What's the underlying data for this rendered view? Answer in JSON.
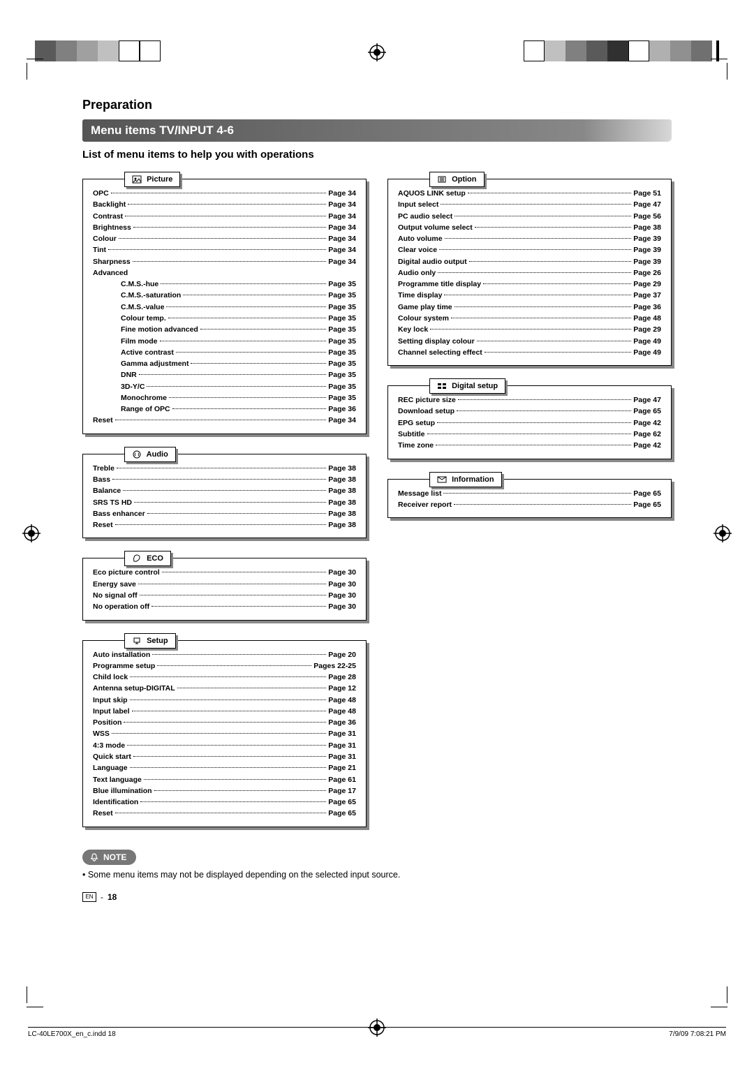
{
  "header": {
    "section_title": "Preparation",
    "bar_title": "Menu items TV/INPUT 4-6",
    "subtitle": "List of menu items to help you with operations"
  },
  "categories": {
    "picture": {
      "label": "Picture",
      "icon": "picture-icon",
      "items": [
        {
          "label": "OPC",
          "page": "Page 34"
        },
        {
          "label": "Backlight",
          "page": "Page 34"
        },
        {
          "label": "Contrast",
          "page": "Page 34"
        },
        {
          "label": "Brightness",
          "page": "Page 34"
        },
        {
          "label": "Colour",
          "page": "Page 34"
        },
        {
          "label": "Tint",
          "page": "Page 34"
        },
        {
          "label": "Sharpness",
          "page": "Page 34"
        }
      ],
      "advanced_label": "Advanced",
      "advanced_items": [
        {
          "label": "C.M.S.-hue",
          "page": "Page 35"
        },
        {
          "label": "C.M.S.-saturation",
          "page": "Page 35"
        },
        {
          "label": "C.M.S.-value",
          "page": "Page 35"
        },
        {
          "label": "Colour temp.",
          "page": "Page 35"
        },
        {
          "label": "Fine motion advanced",
          "page": "Page 35"
        },
        {
          "label": "Film mode",
          "page": "Page 35"
        },
        {
          "label": "Active contrast",
          "page": "Page 35"
        },
        {
          "label": "Gamma adjustment",
          "page": "Page 35"
        },
        {
          "label": "DNR",
          "page": "Page 35"
        },
        {
          "label": "3D-Y/C",
          "page": "Page 35"
        },
        {
          "label": "Monochrome",
          "page": "Page 35"
        },
        {
          "label": "Range of OPC",
          "page": "Page 36"
        }
      ],
      "footer_items": [
        {
          "label": "Reset",
          "page": "Page 34"
        }
      ]
    },
    "audio": {
      "label": "Audio",
      "icon": "audio-icon",
      "items": [
        {
          "label": "Treble",
          "page": "Page 38"
        },
        {
          "label": "Bass",
          "page": "Page 38"
        },
        {
          "label": "Balance",
          "page": "Page 38"
        },
        {
          "label": "SRS TS HD",
          "page": "Page 38"
        },
        {
          "label": "Bass enhancer",
          "page": "Page 38"
        },
        {
          "label": "Reset",
          "page": "Page 38"
        }
      ]
    },
    "eco": {
      "label": "ECO",
      "icon": "eco-icon",
      "items": [
        {
          "label": "Eco picture control",
          "page": "Page 30"
        },
        {
          "label": "Energy save",
          "page": "Page 30"
        },
        {
          "label": "No signal off",
          "page": "Page 30"
        },
        {
          "label": "No operation off",
          "page": "Page 30"
        }
      ]
    },
    "setup": {
      "label": "Setup",
      "icon": "setup-icon",
      "items": [
        {
          "label": "Auto installation",
          "page": "Page 20"
        },
        {
          "label": "Programme setup",
          "page": "Pages 22-25"
        },
        {
          "label": "Child lock",
          "page": "Page 28"
        },
        {
          "label": "Antenna setup-DIGITAL",
          "page": "Page 12"
        },
        {
          "label": "Input skip",
          "page": "Page 48"
        },
        {
          "label": "Input label",
          "page": "Page 48"
        },
        {
          "label": "Position",
          "page": "Page 36"
        },
        {
          "label": "WSS",
          "page": "Page 31"
        },
        {
          "label": "4:3 mode",
          "page": "Page 31"
        },
        {
          "label": "Quick start",
          "page": "Page 31"
        },
        {
          "label": "Language",
          "page": "Page 21"
        },
        {
          "label": "Text language",
          "page": "Page 61"
        },
        {
          "label": "Blue illumination",
          "page": "Page 17"
        },
        {
          "label": "Identification",
          "page": "Page 65"
        },
        {
          "label": "Reset",
          "page": "Page 65"
        }
      ]
    },
    "option": {
      "label": "Option",
      "icon": "option-icon",
      "items": [
        {
          "label": "AQUOS LINK setup",
          "page": "Page 51"
        },
        {
          "label": "Input select",
          "page": "Page 47"
        },
        {
          "label": "PC audio select",
          "page": "Page 56"
        },
        {
          "label": "Output volume select",
          "page": "Page 38"
        },
        {
          "label": "Auto volume",
          "page": "Page 39"
        },
        {
          "label": "Clear voice",
          "page": "Page 39"
        },
        {
          "label": "Digital audio output",
          "page": "Page 39"
        },
        {
          "label": "Audio only",
          "page": "Page 26"
        },
        {
          "label": "Programme title display",
          "page": "Page 29"
        },
        {
          "label": "Time display",
          "page": "Page 37"
        },
        {
          "label": "Game play time",
          "page": "Page 36"
        },
        {
          "label": "Colour system",
          "page": "Page 48"
        },
        {
          "label": "Key lock",
          "page": "Page 29"
        },
        {
          "label": "Setting display colour",
          "page": "Page 49"
        },
        {
          "label": "Channel selecting effect",
          "page": "Page 49"
        }
      ]
    },
    "digital": {
      "label": "Digital setup",
      "icon": "digital-icon",
      "items": [
        {
          "label": "REC picture size",
          "page": "Page 47"
        },
        {
          "label": "Download setup",
          "page": "Page 65"
        },
        {
          "label": "EPG setup",
          "page": "Page 42"
        },
        {
          "label": "Subtitle",
          "page": "Page 62"
        },
        {
          "label": "Time zone",
          "page": "Page 42"
        }
      ]
    },
    "information": {
      "label": "Information",
      "icon": "info-icon",
      "items": [
        {
          "label": "Message list",
          "page": "Page 65"
        },
        {
          "label": "Receiver report",
          "page": "Page 65"
        }
      ]
    }
  },
  "note": {
    "badge": "NOTE",
    "text": "• Some menu items may not be displayed depending on the selected input source."
  },
  "page_number": {
    "lang": "EN",
    "dash": "-",
    "num": "18"
  },
  "footer": {
    "left": "LC-40LE700X_en_c.indd   18",
    "right": "7/9/09   7:08:21 PM"
  },
  "colors": {
    "bar_gradient_start": "#555555",
    "bar_gradient_end": "#d8d8d8",
    "shadow": "#888888",
    "note_bg": "#777777"
  }
}
